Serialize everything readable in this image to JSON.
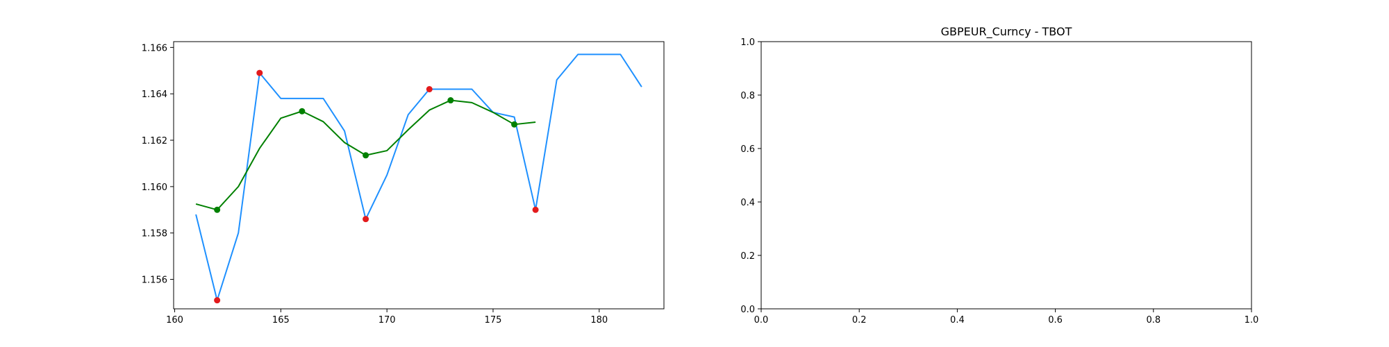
{
  "chart_data": [
    {
      "type": "line",
      "title": "",
      "xlabel": "",
      "ylabel": "",
      "xlim": [
        159.95,
        183.05
      ],
      "ylim": [
        1.15473,
        1.16625
      ],
      "xticks": [
        160,
        165,
        170,
        175,
        180
      ],
      "yticks": [
        1.156,
        1.158,
        1.16,
        1.162,
        1.164,
        1.166
      ],
      "xtick_labels": [
        "160",
        "165",
        "170",
        "175",
        "180"
      ],
      "ytick_labels": [
        "1.156",
        "1.158",
        "1.160",
        "1.162",
        "1.164",
        "1.166"
      ],
      "grid": false,
      "series": [
        {
          "kind": "line",
          "color": "#1e90ff",
          "x": [
            161,
            162,
            163,
            164,
            165,
            166,
            167,
            168,
            169,
            170,
            171,
            172,
            173,
            174,
            175,
            176,
            177,
            178,
            179,
            180,
            181,
            182
          ],
          "y": [
            1.1588,
            1.1551,
            1.158,
            1.1649,
            1.1638,
            1.1638,
            1.1638,
            1.1624,
            1.1586,
            1.1605,
            1.1631,
            1.1642,
            1.1642,
            1.1642,
            1.1632,
            1.163,
            1.159,
            1.1646,
            1.1657,
            1.1657,
            1.1657,
            1.1643
          ]
        },
        {
          "kind": "line",
          "color": "#008000",
          "x": [
            161,
            162,
            163,
            164,
            165,
            166,
            167,
            168,
            169,
            170,
            171,
            172,
            173,
            174,
            175,
            176,
            177
          ],
          "y": [
            1.15925,
            1.159,
            1.16,
            1.16165,
            1.16295,
            1.16325,
            1.1628,
            1.1619,
            1.16135,
            1.16155,
            1.16245,
            1.1633,
            1.16372,
            1.16362,
            1.1632,
            1.16268,
            1.16278
          ]
        },
        {
          "kind": "scatter",
          "color": "#e31a1c",
          "x": [
            162,
            164,
            169,
            172,
            177
          ],
          "y": [
            1.1551,
            1.1649,
            1.1586,
            1.1642,
            1.159
          ]
        },
        {
          "kind": "scatter",
          "color": "#008000",
          "x": [
            162,
            166,
            169,
            173,
            176
          ],
          "y": [
            1.159,
            1.16325,
            1.16135,
            1.16372,
            1.16268
          ]
        }
      ]
    },
    {
      "type": "line",
      "title": "GBPEUR_Curncy - TBOT",
      "xlabel": "",
      "ylabel": "",
      "xlim": [
        0,
        1
      ],
      "ylim": [
        0,
        1
      ],
      "xticks": [
        0,
        0.2,
        0.4,
        0.6,
        0.8,
        1.0
      ],
      "yticks": [
        0,
        0.2,
        0.4,
        0.6,
        0.8,
        1.0
      ],
      "xtick_labels": [
        "0.0",
        "0.2",
        "0.4",
        "0.6",
        "0.8",
        "1.0"
      ],
      "ytick_labels": [
        "0.0",
        "0.2",
        "0.4",
        "0.6",
        "0.8",
        "1.0"
      ],
      "grid": false,
      "series": []
    }
  ]
}
